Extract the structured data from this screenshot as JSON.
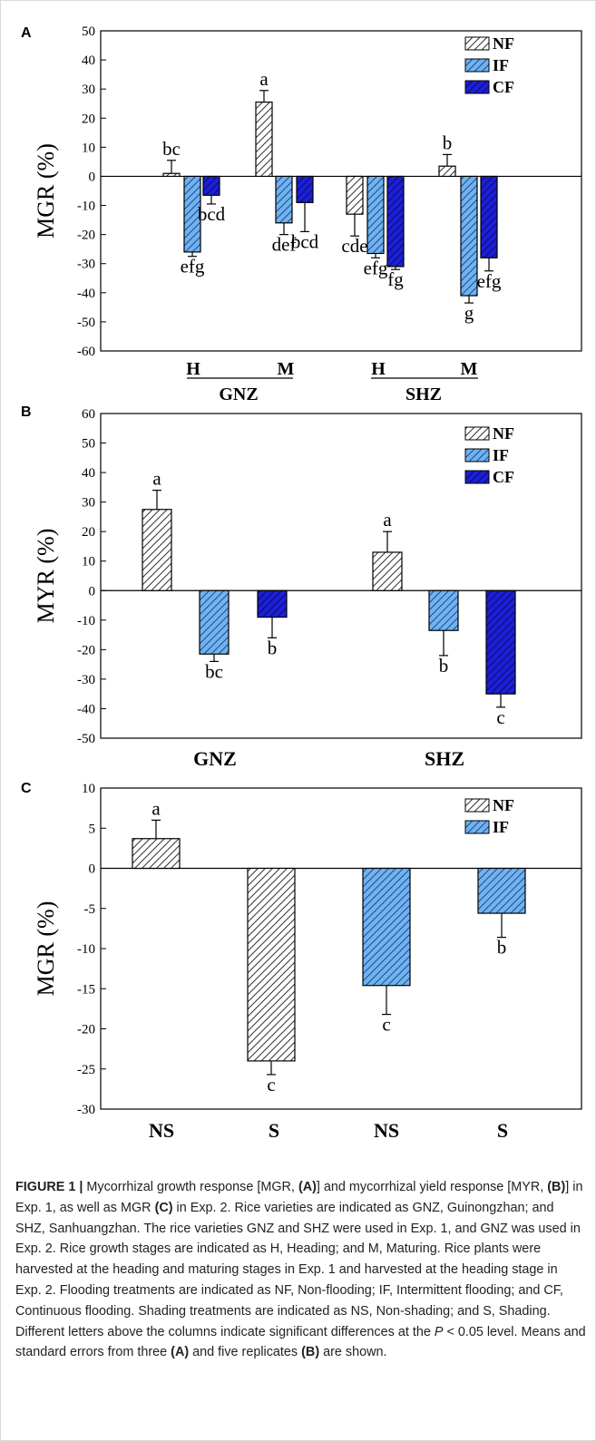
{
  "colors": {
    "NF": "#ffffff",
    "IF": "#6fb3f0",
    "CF": "#1c1fd8"
  },
  "chart_data": [
    {
      "panel": "A",
      "type": "bar",
      "ylabel": "MGR (%)",
      "ylim": [
        -60,
        50
      ],
      "yticks": [
        50,
        40,
        30,
        20,
        10,
        0,
        -10,
        -20,
        -30,
        -40,
        -50,
        -60
      ],
      "groups": [
        "H",
        "M",
        "H",
        "M"
      ],
      "supergroups": [
        "GNZ",
        "SHZ"
      ],
      "legend": [
        "NF",
        "IF",
        "CF"
      ],
      "legend_position": "top-right",
      "series": [
        {
          "name": "NF",
          "values": [
            1,
            25.5,
            -13,
            3.5
          ],
          "errors": [
            4.5,
            4,
            7.5,
            4
          ],
          "letters": [
            "bc",
            "a",
            "cde",
            "b"
          ]
        },
        {
          "name": "IF",
          "values": [
            -26,
            -16,
            -26.5,
            -41
          ],
          "errors": [
            1.5,
            4,
            1.5,
            2.5
          ],
          "letters": [
            "efg",
            "def",
            "efg",
            "g"
          ]
        },
        {
          "name": "CF",
          "values": [
            -6.5,
            -9,
            -31,
            -28
          ],
          "errors": [
            3,
            10,
            1,
            4.5
          ],
          "letters": [
            "bcd",
            "bcd",
            "fg",
            "efg"
          ]
        }
      ]
    },
    {
      "panel": "B",
      "type": "bar",
      "ylabel": "MYR (%)",
      "ylim": [
        -50,
        60
      ],
      "yticks": [
        60,
        50,
        40,
        30,
        20,
        10,
        0,
        -10,
        -20,
        -30,
        -40,
        -50
      ],
      "categories": [
        "GNZ",
        "SHZ"
      ],
      "legend": [
        "NF",
        "IF",
        "CF"
      ],
      "legend_position": "top-right",
      "series": [
        {
          "name": "NF",
          "values": [
            27.5,
            13
          ],
          "errors": [
            6.5,
            7
          ],
          "letters": [
            "a",
            "a"
          ]
        },
        {
          "name": "IF",
          "values": [
            -21.5,
            -13.5
          ],
          "errors": [
            2.5,
            8.5
          ],
          "letters": [
            "bc",
            "b"
          ]
        },
        {
          "name": "CF",
          "values": [
            -9,
            -35
          ],
          "errors": [
            7,
            4.5
          ],
          "letters": [
            "b",
            "c"
          ]
        }
      ]
    },
    {
      "panel": "C",
      "type": "bar",
      "ylabel": "MGR (%)",
      "ylim": [
        -30,
        10
      ],
      "yticks": [
        10,
        5,
        0,
        -5,
        -10,
        -15,
        -20,
        -25,
        -30
      ],
      "categories": [
        "NS",
        "S",
        "NS",
        "S"
      ],
      "legend": [
        "NF",
        "IF"
      ],
      "legend_position": "top-right",
      "bars": [
        {
          "series": "NF",
          "value": 3.7,
          "error": 2.3,
          "letter": "a"
        },
        {
          "series": "NF",
          "value": -24,
          "error": 1.7,
          "letter": "c"
        },
        {
          "series": "IF",
          "value": -14.6,
          "error": 3.6,
          "letter": "c"
        },
        {
          "series": "IF",
          "value": -5.6,
          "error": 3,
          "letter": "b"
        }
      ]
    }
  ],
  "caption": {
    "lead": "FIGURE 1 |",
    "p1": " Mycorrhizal growth response [MGR, ",
    "refA1": "(A)",
    "p2": "] and mycorrhizal yield response [MYR, ",
    "refB1": "(B)",
    "p3": "] in Exp. 1, as well as MGR ",
    "refC1": "(C)",
    "p4": " in Exp. 2. Rice varieties are indicated as GNZ, Guinongzhan; and SHZ, Sanhuangzhan. The rice varieties GNZ and SHZ were used in Exp. 1, and GNZ was used in Exp. 2. Rice growth stages are indicated as H, Heading; and M, Maturing. Rice plants were harvested at the heading and maturing stages in Exp. 1 and harvested at the heading stage in Exp. 2. Flooding treatments are indicated as NF, Non-flooding; IF, Intermittent flooding; and CF, Continuous flooding. Shading treatments are indicated as NS, Non-shading; and S, Shading. Different letters above the columns indicate significant differences at the ",
    "pvar": "P",
    "p5": " < 0.05 level. Means and standard errors from three ",
    "refA2": "(A)",
    "p6": " and five replicates ",
    "refB2": "(B)",
    "p7": " are shown."
  }
}
